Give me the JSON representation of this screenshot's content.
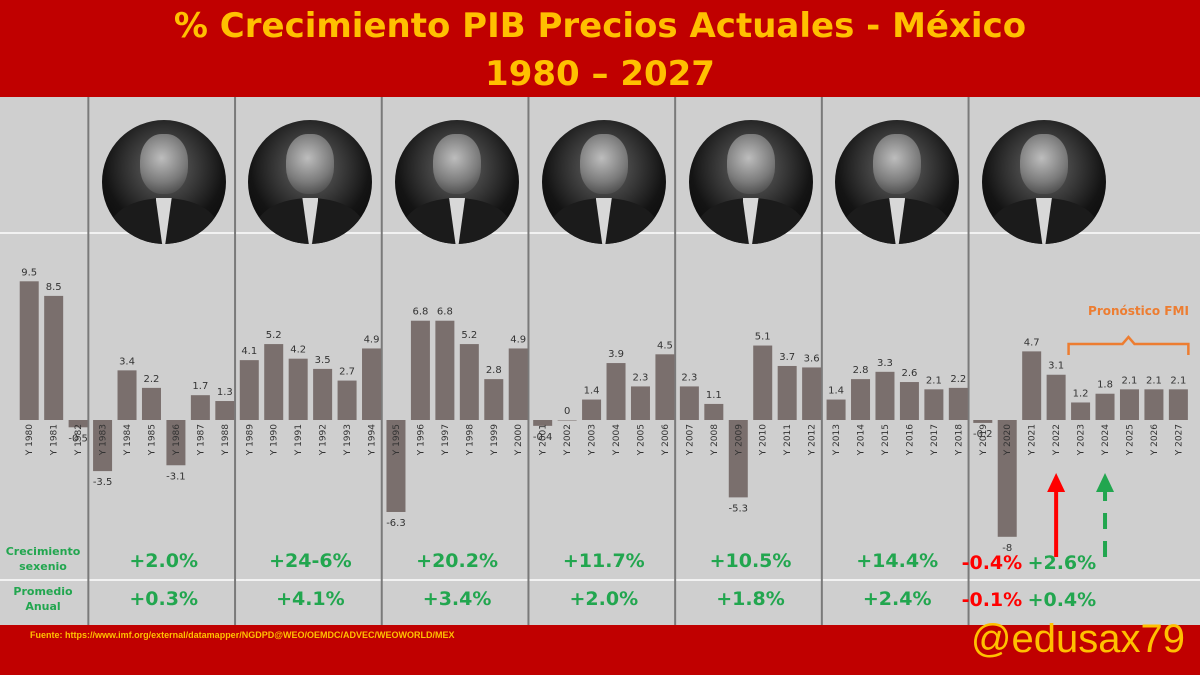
{
  "title_line1": "% Crecimiento PIB Precios Actuales - México",
  "title_line2": "1980 – 2027",
  "source": "Fuente: https://www.imf.org/external/datamapper/NGDPD@WEO/OEMDC/ADVEC/WEOWORLD/MEX",
  "handle": "@edusax79",
  "colors": {
    "background": "#c00000",
    "title": "#ffc000",
    "panel": "#cfcfcf",
    "bar": "#7a6f6d",
    "positive": "#22a64f",
    "negative": "#ff0000",
    "forecast": "#ed7d31"
  },
  "chart_data": {
    "type": "bar",
    "categories": [
      "Y 1980",
      "Y 1981",
      "Y 1982",
      "Y 1983",
      "Y 1984",
      "Y 1985",
      "Y 1986",
      "Y 1987",
      "Y 1988",
      "Y 1989",
      "Y 1990",
      "Y 1991",
      "Y 1992",
      "Y 1993",
      "Y 1994",
      "Y 1995",
      "Y 1996",
      "Y 1997",
      "Y 1998",
      "Y 1999",
      "Y 2000",
      "Y 2001",
      "Y 2002",
      "Y 2003",
      "Y 2004",
      "Y 2005",
      "Y 2006",
      "Y 2007",
      "Y 2008",
      "Y 2009",
      "Y 2010",
      "Y 2011",
      "Y 2012",
      "Y 2013",
      "Y 2014",
      "Y 2015",
      "Y 2016",
      "Y 2017",
      "Y 2018",
      "Y 2019",
      "Y 2020",
      "Y 2021",
      "Y 2022",
      "Y 2023",
      "Y 2024",
      "Y 2025",
      "Y 2026",
      "Y 2027"
    ],
    "values": [
      9.5,
      8.5,
      -0.5,
      -3.5,
      3.4,
      2.2,
      -3.1,
      1.7,
      1.3,
      4.1,
      5.2,
      4.2,
      3.5,
      2.7,
      4.9,
      -6.3,
      6.8,
      6.8,
      5.2,
      2.8,
      4.9,
      -0.4,
      0,
      1.4,
      3.9,
      2.3,
      4.5,
      2.3,
      1.1,
      -5.3,
      5.1,
      3.7,
      3.6,
      1.4,
      2.8,
      3.3,
      2.6,
      2.1,
      2.2,
      -0.2,
      -8,
      4.7,
      3.1,
      1.2,
      1.8,
      2.1,
      2.1,
      2.1
    ],
    "value_labels": [
      "9.5",
      "8.5",
      "-0.5",
      "-3.5",
      "3.4",
      "2.2",
      "-3.1",
      "1.7",
      "1.3",
      "4.1",
      "5.2",
      "4.2",
      "3.5",
      "2.7",
      "4.9",
      "-6.3",
      "6.8",
      "6.8",
      "5.2",
      "2.8",
      "4.9",
      "-0.4",
      "0",
      "1.4",
      "3.9",
      "2.3",
      "4.5",
      "2.3",
      "1.1",
      "-5.3",
      "5.1",
      "3.7",
      "3.6",
      "1.4",
      "2.8",
      "3.3",
      "2.6",
      "2.1",
      "2.2",
      "-0.2",
      "-8",
      "4.7",
      "3.1",
      "1.2",
      "1.8",
      "2.1",
      "2.1",
      "2.1"
    ],
    "ylim": [
      -9,
      11
    ],
    "annotation": "Pronóstico FMI",
    "forecast_range": [
      "Y 2023",
      "Y 2027"
    ],
    "arrows": [
      {
        "category": "Y 2022",
        "color": "red",
        "style": "solid"
      },
      {
        "category": "Y 2024",
        "color": "green",
        "style": "dashed"
      }
    ],
    "periods": [
      {
        "range": [
          "Y 1983",
          "Y 1988"
        ],
        "sexenio": "+2.0%",
        "sexenio_color": "green",
        "promedio": "+0.3%",
        "promedio_color": "green"
      },
      {
        "range": [
          "Y 1989",
          "Y 1994"
        ],
        "sexenio": "+24-6%",
        "sexenio_color": "green",
        "promedio": "+4.1%",
        "promedio_color": "green"
      },
      {
        "range": [
          "Y 1995",
          "Y 2000"
        ],
        "sexenio": "+20.2%",
        "sexenio_color": "green",
        "promedio": "+3.4%",
        "promedio_color": "green"
      },
      {
        "range": [
          "Y 2001",
          "Y 2006"
        ],
        "sexenio": "+11.7%",
        "sexenio_color": "green",
        "promedio": "+2.0%",
        "promedio_color": "green"
      },
      {
        "range": [
          "Y 2007",
          "Y 2012"
        ],
        "sexenio": "+10.5%",
        "sexenio_color": "green",
        "promedio": "+1.8%",
        "promedio_color": "green"
      },
      {
        "range": [
          "Y 2013",
          "Y 2018"
        ],
        "sexenio": "+14.4%",
        "sexenio_color": "green",
        "promedio": "+2.4%",
        "promedio_color": "green"
      },
      {
        "range": [
          "Y 2019",
          "Y 2024"
        ],
        "sexenio": "-0.4%",
        "sexenio_color": "red",
        "sexenio2": "+2.6%",
        "sexenio2_color": "green",
        "promedio": "-0.1%",
        "promedio_color": "red",
        "promedio2": "+0.4%",
        "promedio2_color": "green"
      }
    ],
    "row_labels": {
      "sexenio": "Crecimiento sexenio",
      "promedio": "Promedio Anual"
    }
  }
}
